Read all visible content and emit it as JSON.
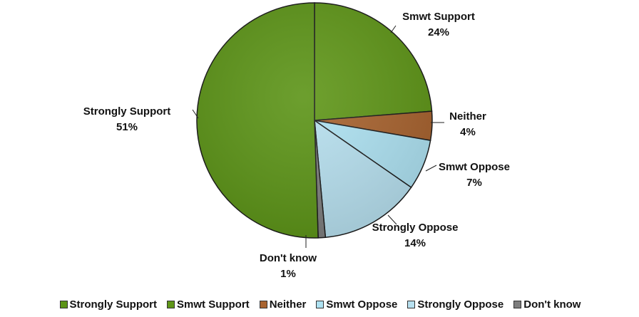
{
  "chart_data": {
    "type": "pie",
    "slices": [
      {
        "label": "Smwt Support",
        "value": 24,
        "value_label": "24%",
        "color": "#5f9618"
      },
      {
        "label": "Neither",
        "value": 4,
        "value_label": "4%",
        "color": "#a8632f"
      },
      {
        "label": "Smwt Oppose",
        "value": 7,
        "value_label": "7%",
        "color": "#aee2f2"
      },
      {
        "label": "Strongly Oppose",
        "value": 14,
        "value_label": "14%",
        "color": "#b7e0ef"
      },
      {
        "label": "Don't know",
        "value": 1,
        "value_label": "1%",
        "color": "#7d7d7d"
      },
      {
        "label": "Strongly Support",
        "value": 51,
        "value_label": "51%",
        "color": "#5c9417"
      }
    ],
    "legend": {
      "position": "bottom",
      "entries": [
        {
          "label": "Strongly Support",
          "color": "#5c9417"
        },
        {
          "label": "Smwt Support",
          "color": "#5f9618"
        },
        {
          "label": "Neither",
          "color": "#a8632f"
        },
        {
          "label": "Smwt Oppose",
          "color": "#aee2f2"
        },
        {
          "label": "Strongly Oppose",
          "color": "#b7e0ef"
        },
        {
          "label": "Don't know",
          "color": "#7d7d7d"
        }
      ]
    }
  }
}
